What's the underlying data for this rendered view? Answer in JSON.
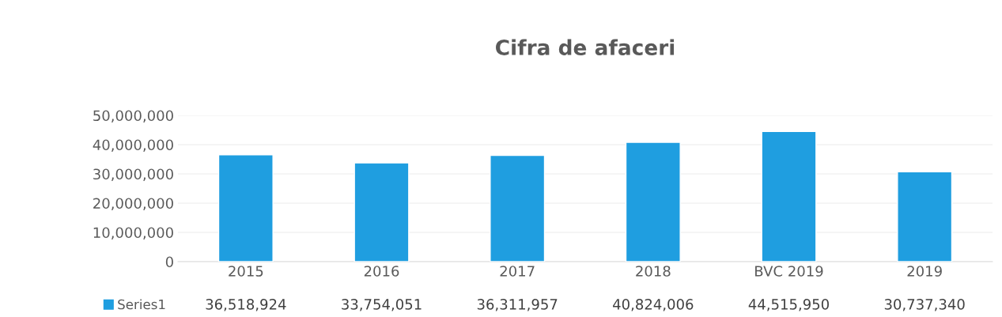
{
  "chart_data": {
    "type": "bar",
    "title": "Cifra de afaceri",
    "categories": [
      "2015",
      "2016",
      "2017",
      "2018",
      "BVC 2019",
      "2019"
    ],
    "series": [
      {
        "name": "Series1",
        "color": "#1f9ee0",
        "values": [
          36518924,
          33754051,
          36311957,
          40824006,
          44515950,
          30737340
        ]
      }
    ],
    "value_labels": [
      "36,518,924",
      "33,754,051",
      "36,311,957",
      "40,824,006",
      "44,515,950",
      "30,737,340"
    ],
    "ylim": [
      0,
      50000000
    ],
    "yticks": [
      {
        "value": 0,
        "label": "0"
      },
      {
        "value": 10000000,
        "label": "10,000,000"
      },
      {
        "value": 20000000,
        "label": "20,000,000"
      },
      {
        "value": 30000000,
        "label": "30,000,000"
      },
      {
        "value": 40000000,
        "label": "40,000,000"
      },
      {
        "value": 50000000,
        "label": "50,000,000"
      }
    ],
    "grid": "y",
    "legend": "bottom left"
  }
}
